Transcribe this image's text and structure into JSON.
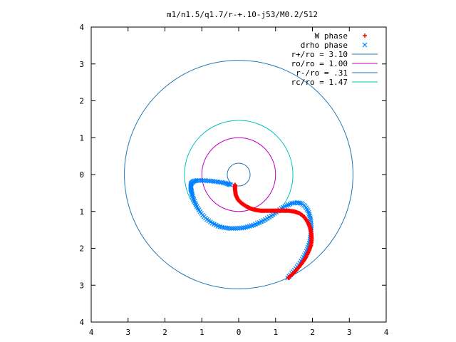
{
  "chart_data": {
    "type": "scatter",
    "title": "m1/n1.5/q1.7/r-+.10-j53/M0.2/512",
    "xlabel": "",
    "ylabel": "",
    "xlim": [
      -4,
      4
    ],
    "ylim": [
      -4,
      4
    ],
    "x_ticks": [
      "4",
      "3",
      "2",
      "1",
      "0",
      "1",
      "2",
      "3",
      "4"
    ],
    "y_ticks": [
      "4",
      "3",
      "2",
      "1",
      "0",
      "1",
      "2",
      "3",
      "4"
    ],
    "grid": false,
    "legend_position": "top-right",
    "legend": [
      {
        "label": "W phase",
        "kind": "plus",
        "color": "#ff0000"
      },
      {
        "label": "drho phase",
        "kind": "cross",
        "color": "#0080ff"
      },
      {
        "label": "r+/ro = 3.10",
        "kind": "line",
        "color": "#1f78b4"
      },
      {
        "label": "ro/ro = 1.00",
        "kind": "line",
        "color": "#c000c0"
      },
      {
        "label": "r-/ro = .31",
        "kind": "line",
        "color": "#1f78b4"
      },
      {
        "label": "rc/ro = 1.47",
        "kind": "line",
        "color": "#00c0c0"
      }
    ],
    "circles": [
      {
        "name": "r+/ro",
        "radius": 3.1,
        "color": "#1f78b4"
      },
      {
        "name": "ro/ro",
        "radius": 1.0,
        "color": "#c000c0"
      },
      {
        "name": "r-/ro",
        "radius": 0.31,
        "color": "#1f78b4"
      },
      {
        "name": "rc/ro",
        "radius": 1.47,
        "color": "#00c0c0"
      }
    ],
    "series": [
      {
        "name": "W phase",
        "marker": "plus",
        "color": "#ff0000",
        "points": [
          [
            -0.1,
            -0.28
          ],
          [
            -0.1,
            -0.4
          ],
          [
            -0.08,
            -0.55
          ],
          [
            -0.02,
            -0.68
          ],
          [
            0.08,
            -0.78
          ],
          [
            0.2,
            -0.86
          ],
          [
            0.32,
            -0.92
          ],
          [
            0.45,
            -0.96
          ],
          [
            0.6,
            -0.98
          ],
          [
            0.75,
            -0.98
          ],
          [
            0.9,
            -0.98
          ],
          [
            1.05,
            -0.98
          ],
          [
            1.2,
            -0.98
          ],
          [
            1.35,
            -0.98
          ],
          [
            1.5,
            -1.0
          ],
          [
            1.65,
            -1.05
          ],
          [
            1.78,
            -1.15
          ],
          [
            1.88,
            -1.3
          ],
          [
            1.94,
            -1.45
          ],
          [
            1.97,
            -1.6
          ],
          [
            1.98,
            -1.75
          ],
          [
            1.96,
            -1.92
          ],
          [
            1.9,
            -2.08
          ],
          [
            1.82,
            -2.25
          ],
          [
            1.72,
            -2.4
          ],
          [
            1.6,
            -2.55
          ],
          [
            1.48,
            -2.68
          ],
          [
            1.35,
            -2.8
          ]
        ]
      },
      {
        "name": "drho phase",
        "marker": "cross",
        "color": "#0080ff",
        "points": [
          [
            -0.22,
            -0.28
          ],
          [
            -0.3,
            -0.25
          ],
          [
            -0.42,
            -0.22
          ],
          [
            -0.56,
            -0.2
          ],
          [
            -0.7,
            -0.18
          ],
          [
            -0.84,
            -0.17
          ],
          [
            -0.98,
            -0.16
          ],
          [
            -1.12,
            -0.16
          ],
          [
            -1.22,
            -0.18
          ],
          [
            -1.28,
            -0.23
          ],
          [
            -1.3,
            -0.3
          ],
          [
            -1.3,
            -0.38
          ],
          [
            -1.28,
            -0.45
          ],
          [
            -1.26,
            -0.55
          ],
          [
            -1.22,
            -0.68
          ],
          [
            -1.16,
            -0.82
          ],
          [
            -1.08,
            -0.96
          ],
          [
            -0.98,
            -1.1
          ],
          [
            -0.86,
            -1.22
          ],
          [
            -0.72,
            -1.32
          ],
          [
            -0.56,
            -1.4
          ],
          [
            -0.4,
            -1.44
          ],
          [
            -0.24,
            -1.46
          ],
          [
            -0.08,
            -1.46
          ],
          [
            0.08,
            -1.45
          ],
          [
            0.24,
            -1.42
          ],
          [
            0.4,
            -1.37
          ],
          [
            0.56,
            -1.3
          ],
          [
            0.72,
            -1.22
          ],
          [
            0.88,
            -1.12
          ],
          [
            1.02,
            -1.02
          ],
          [
            1.16,
            -0.92
          ],
          [
            1.3,
            -0.84
          ],
          [
            1.44,
            -0.78
          ],
          [
            1.58,
            -0.76
          ],
          [
            1.7,
            -0.78
          ],
          [
            1.8,
            -0.86
          ],
          [
            1.88,
            -0.98
          ],
          [
            1.93,
            -1.12
          ],
          [
            1.96,
            -1.28
          ],
          [
            1.97,
            -1.44
          ],
          [
            1.96,
            -1.6
          ],
          [
            1.94,
            -1.76
          ],
          [
            1.9,
            -1.92
          ],
          [
            1.84,
            -2.08
          ],
          [
            1.76,
            -2.24
          ],
          [
            1.66,
            -2.4
          ],
          [
            1.55,
            -2.55
          ],
          [
            1.44,
            -2.68
          ],
          [
            1.33,
            -2.8
          ]
        ]
      }
    ]
  }
}
